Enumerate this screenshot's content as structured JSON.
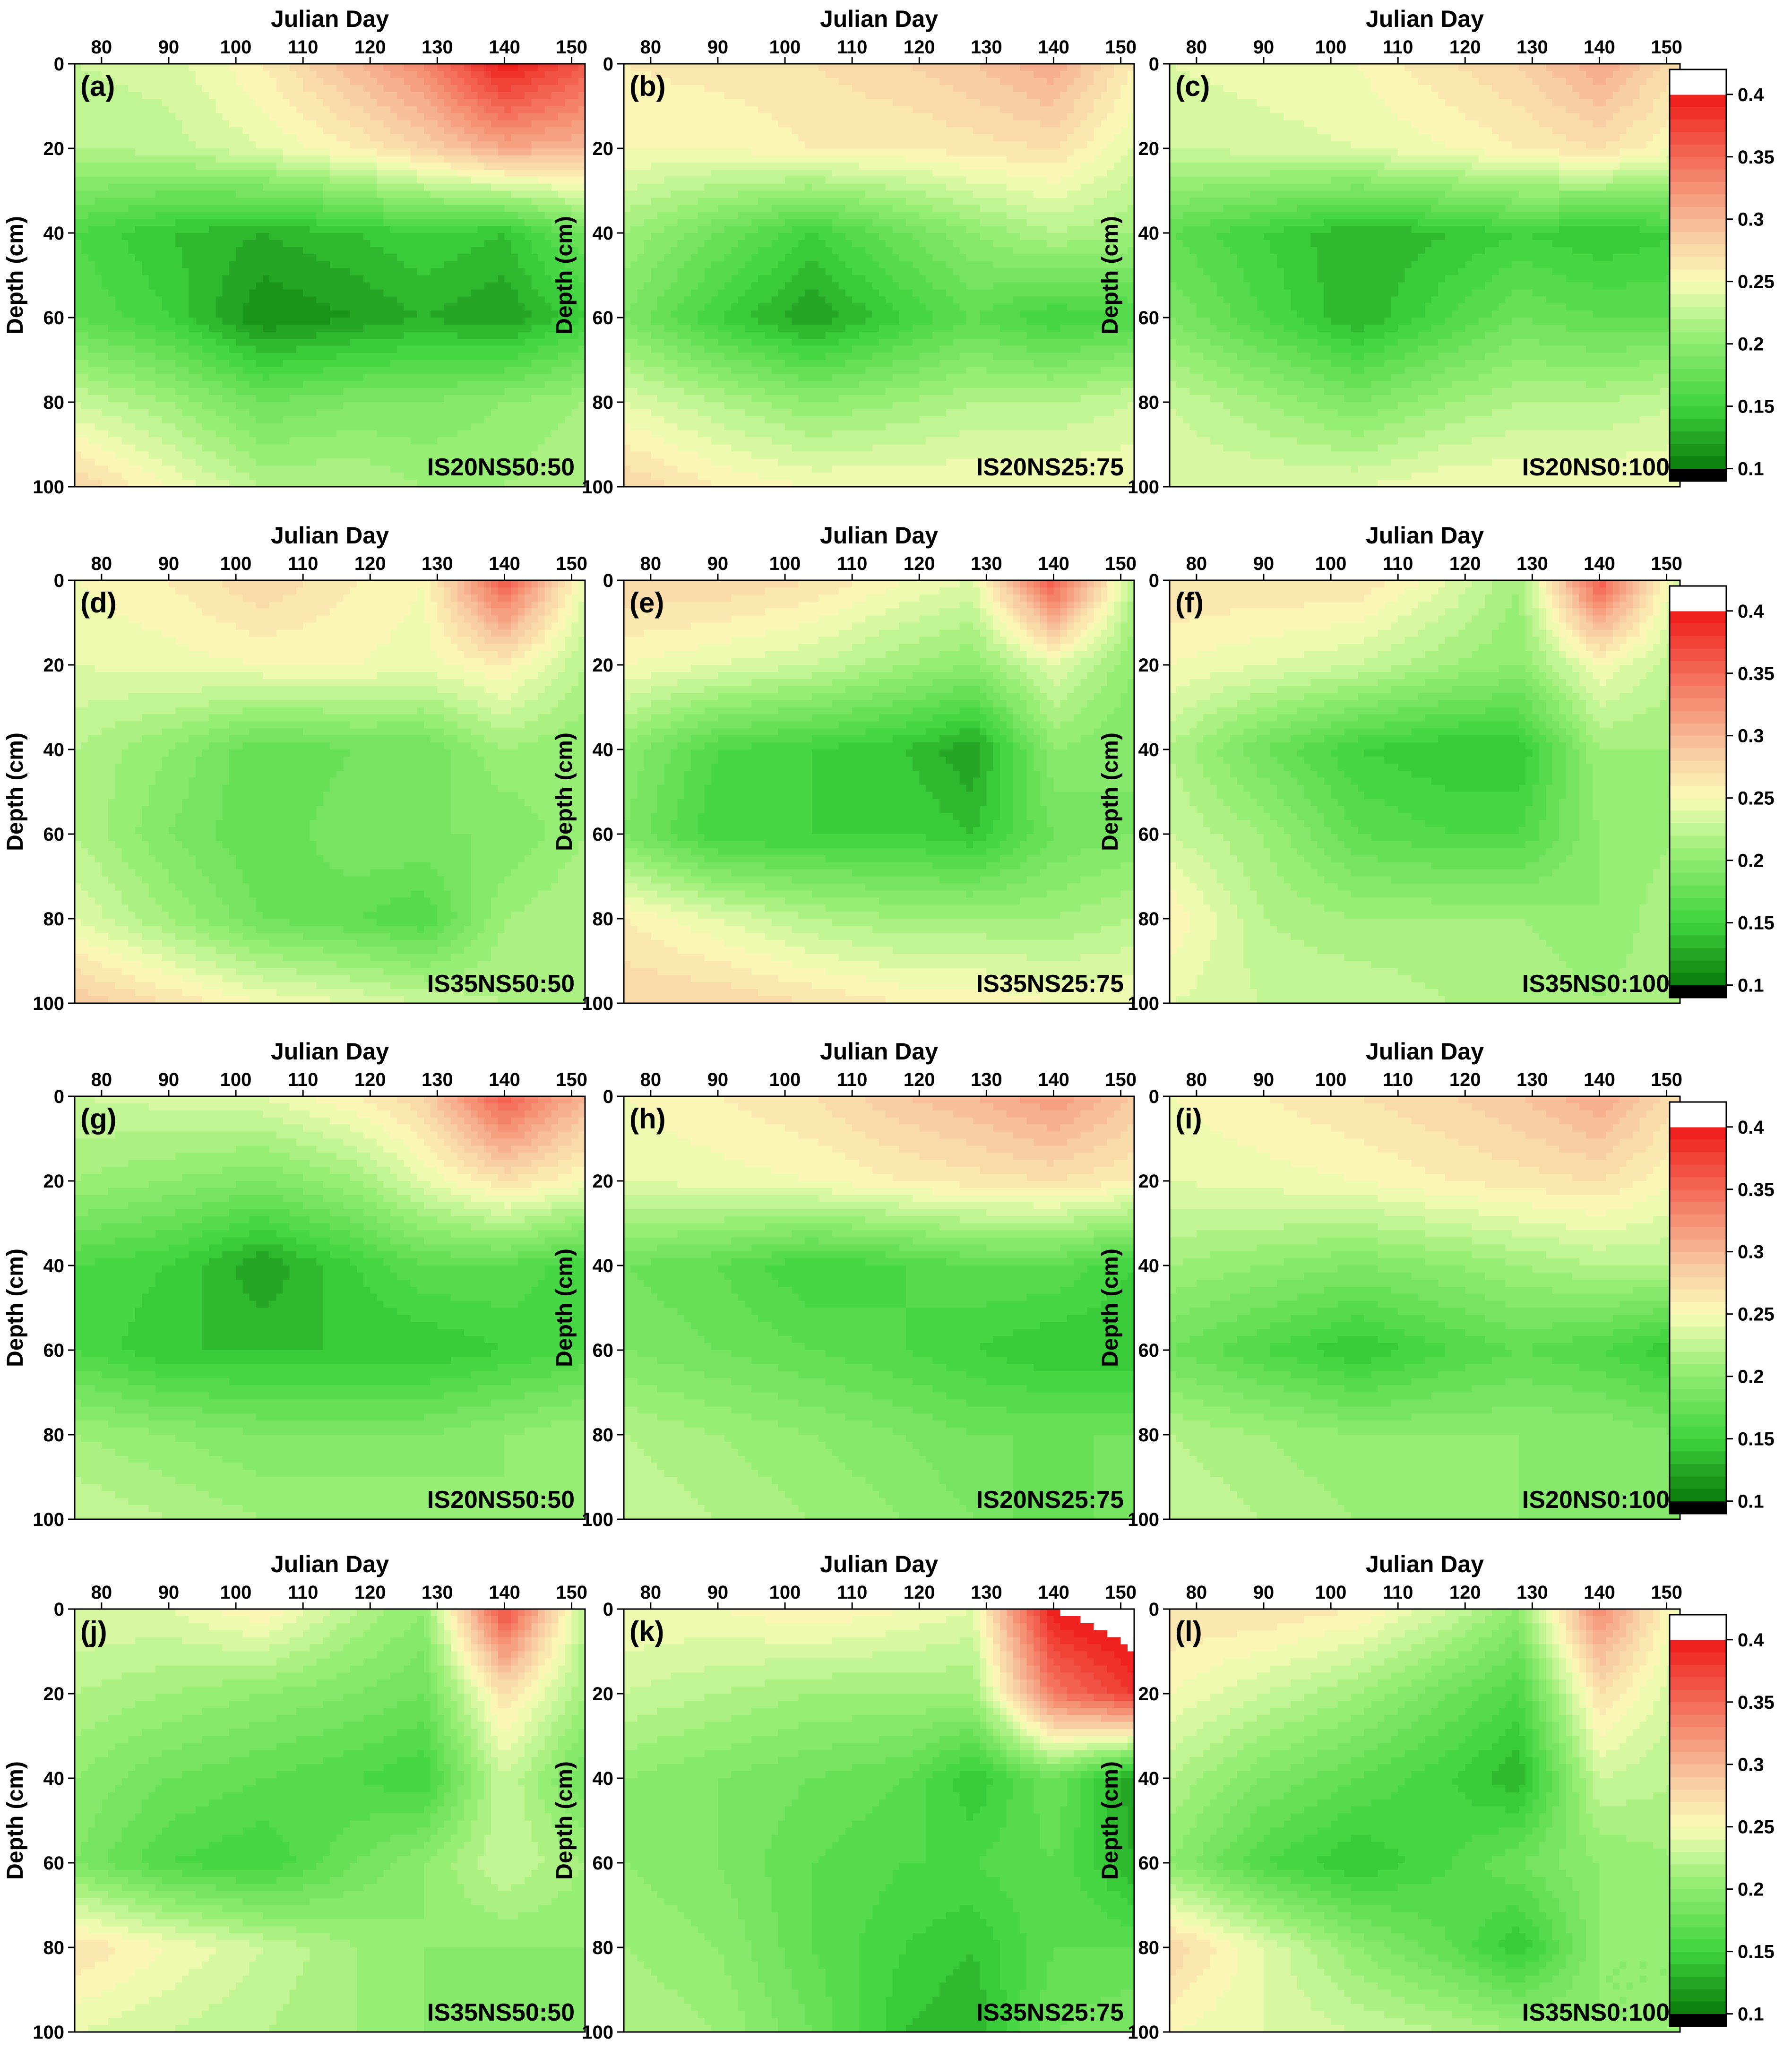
{
  "x_axis_label": "Julian Day",
  "y_axis_label": "Depth (cm)",
  "colors": {
    "low": "#000000",
    "dark_green": "#0a7a0a",
    "green": "#3fd43f",
    "light_green": "#9ef07a",
    "pale": "#fbfbb9",
    "peach": "#f8c8a0",
    "red": "#ef1a1a",
    "high": "#ffffff"
  },
  "chart_data": [
    {
      "type": "heatmap",
      "panel": "(a)",
      "label": "IS20NS50:50",
      "xlabel": "Julian Day",
      "ylabel": "Depth (cm)",
      "x": [
        76,
        90,
        104,
        118,
        128,
        140,
        152
      ],
      "y": [
        0,
        20,
        40,
        60,
        80,
        100
      ],
      "x_ticks": [
        80,
        90,
        100,
        110,
        120,
        130,
        140,
        150
      ],
      "y_ticks": [
        0,
        20,
        40,
        60,
        80,
        100
      ],
      "xlim": [
        76,
        152
      ],
      "ylim": [
        0,
        100
      ],
      "z": [
        [
          0.23,
          0.235,
          0.26,
          0.3,
          0.33,
          0.4,
          0.36
        ],
        [
          0.22,
          0.225,
          0.24,
          0.26,
          0.28,
          0.31,
          0.3
        ],
        [
          0.16,
          0.14,
          0.13,
          0.14,
          0.15,
          0.14,
          0.18
        ],
        [
          0.17,
          0.15,
          0.11,
          0.12,
          0.13,
          0.12,
          0.15
        ],
        [
          0.23,
          0.21,
          0.18,
          0.19,
          0.19,
          0.2,
          0.21
        ],
        [
          0.28,
          0.25,
          0.22,
          0.22,
          0.21,
          0.21,
          0.22
        ]
      ]
    },
    {
      "type": "heatmap",
      "panel": "(b)",
      "label": "IS20NS25:75",
      "xlabel": "Julian Day",
      "ylabel": "Depth (cm)",
      "x": [
        76,
        90,
        104,
        118,
        128,
        140,
        152
      ],
      "y": [
        0,
        20,
        40,
        60,
        80,
        100
      ],
      "x_ticks": [
        80,
        90,
        100,
        110,
        120,
        130,
        140,
        150
      ],
      "y_ticks": [
        0,
        20,
        40,
        60,
        80,
        100
      ],
      "xlim": [
        76,
        152
      ],
      "ylim": [
        0,
        100
      ],
      "z": [
        [
          0.26,
          0.265,
          0.27,
          0.28,
          0.29,
          0.31,
          0.26
        ],
        [
          0.25,
          0.25,
          0.26,
          0.26,
          0.265,
          0.27,
          0.24
        ],
        [
          0.21,
          0.18,
          0.15,
          0.18,
          0.2,
          0.22,
          0.21
        ],
        [
          0.19,
          0.15,
          0.12,
          0.15,
          0.17,
          0.15,
          0.16
        ],
        [
          0.24,
          0.22,
          0.2,
          0.21,
          0.22,
          0.22,
          0.23
        ],
        [
          0.28,
          0.26,
          0.25,
          0.25,
          0.25,
          0.25,
          0.25
        ]
      ]
    },
    {
      "type": "heatmap",
      "panel": "(c)",
      "label": "IS20NS0:100",
      "xlabel": "Julian Day",
      "ylabel": "Depth (cm)",
      "x": [
        76,
        90,
        104,
        118,
        128,
        140,
        152
      ],
      "y": [
        0,
        20,
        40,
        60,
        80,
        100
      ],
      "x_ticks": [
        80,
        90,
        100,
        110,
        120,
        130,
        140,
        150
      ],
      "y_ticks": [
        0,
        20,
        40,
        60,
        80,
        100
      ],
      "xlim": [
        76,
        152
      ],
      "ylim": [
        0,
        100
      ],
      "z": [
        [
          0.24,
          0.245,
          0.25,
          0.27,
          0.28,
          0.31,
          0.27
        ],
        [
          0.23,
          0.235,
          0.24,
          0.25,
          0.26,
          0.27,
          0.25
        ],
        [
          0.17,
          0.15,
          0.13,
          0.14,
          0.15,
          0.14,
          0.15
        ],
        [
          0.19,
          0.16,
          0.13,
          0.16,
          0.18,
          0.17,
          0.17
        ],
        [
          0.23,
          0.21,
          0.19,
          0.21,
          0.22,
          0.22,
          0.23
        ],
        [
          0.24,
          0.24,
          0.24,
          0.25,
          0.25,
          0.25,
          0.25
        ]
      ]
    },
    {
      "type": "heatmap",
      "panel": "(d)",
      "label": "IS35NS50:50",
      "xlabel": "Julian Day",
      "ylabel": "Depth (cm)",
      "x": [
        76,
        90,
        104,
        118,
        128,
        140,
        152
      ],
      "y": [
        0,
        20,
        40,
        60,
        80,
        100
      ],
      "x_ticks": [
        80,
        90,
        100,
        110,
        120,
        130,
        140,
        150
      ],
      "y_ticks": [
        0,
        20,
        40,
        60,
        80,
        100
      ],
      "xlim": [
        76,
        152
      ],
      "ylim": [
        0,
        100
      ],
      "z": [
        [
          0.25,
          0.26,
          0.28,
          0.26,
          0.25,
          0.36,
          0.24
        ],
        [
          0.24,
          0.245,
          0.25,
          0.25,
          0.245,
          0.26,
          0.22
        ],
        [
          0.22,
          0.2,
          0.17,
          0.18,
          0.18,
          0.21,
          0.2
        ],
        [
          0.22,
          0.19,
          0.17,
          0.19,
          0.19,
          0.19,
          0.21
        ],
        [
          0.24,
          0.21,
          0.18,
          0.17,
          0.16,
          0.21,
          0.22
        ],
        [
          0.29,
          0.27,
          0.25,
          0.24,
          0.23,
          0.22,
          0.22
        ]
      ]
    },
    {
      "type": "heatmap",
      "panel": "(e)",
      "label": "IS35NS25:75",
      "xlabel": "Julian Day",
      "ylabel": "Depth (cm)",
      "x": [
        76,
        90,
        104,
        118,
        128,
        140,
        152
      ],
      "y": [
        0,
        20,
        40,
        60,
        80,
        100
      ],
      "x_ticks": [
        80,
        90,
        100,
        110,
        120,
        130,
        140,
        150
      ],
      "y_ticks": [
        0,
        20,
        40,
        60,
        80,
        100
      ],
      "xlim": [
        76,
        152
      ],
      "ylim": [
        0,
        100
      ],
      "z": [
        [
          0.28,
          0.28,
          0.27,
          0.25,
          0.24,
          0.36,
          0.22
        ],
        [
          0.25,
          0.24,
          0.23,
          0.21,
          0.2,
          0.24,
          0.2
        ],
        [
          0.2,
          0.16,
          0.15,
          0.14,
          0.12,
          0.2,
          0.19
        ],
        [
          0.19,
          0.15,
          0.15,
          0.15,
          0.14,
          0.18,
          0.19
        ],
        [
          0.26,
          0.24,
          0.22,
          0.21,
          0.21,
          0.21,
          0.22
        ],
        [
          0.28,
          0.28,
          0.27,
          0.26,
          0.26,
          0.25,
          0.25
        ]
      ]
    },
    {
      "type": "heatmap",
      "panel": "(f)",
      "label": "IS35NS0:100",
      "xlabel": "Julian Day",
      "ylabel": "Depth (cm)",
      "x": [
        76,
        90,
        104,
        118,
        128,
        140,
        152
      ],
      "y": [
        0,
        20,
        40,
        60,
        80,
        100
      ],
      "x_ticks": [
        80,
        90,
        100,
        110,
        120,
        130,
        140,
        150
      ],
      "y_ticks": [
        0,
        20,
        40,
        60,
        80,
        100
      ],
      "xlim": [
        76,
        152
      ],
      "ylim": [
        0,
        100
      ],
      "z": [
        [
          0.27,
          0.27,
          0.27,
          0.24,
          0.21,
          0.36,
          0.23
        ],
        [
          0.25,
          0.24,
          0.23,
          0.21,
          0.2,
          0.25,
          0.22
        ],
        [
          0.22,
          0.18,
          0.15,
          0.14,
          0.14,
          0.21,
          0.21
        ],
        [
          0.23,
          0.21,
          0.17,
          0.16,
          0.16,
          0.2,
          0.21
        ],
        [
          0.26,
          0.22,
          0.21,
          0.21,
          0.21,
          0.2,
          0.22
        ],
        [
          0.24,
          0.23,
          0.23,
          0.22,
          0.22,
          0.21,
          0.22
        ]
      ]
    },
    {
      "type": "heatmap",
      "panel": "(g)",
      "label": "IS20NS50:50",
      "xlabel": "Julian Day",
      "ylabel": "Depth (cm)",
      "x": [
        76,
        90,
        104,
        118,
        128,
        140,
        152
      ],
      "y": [
        0,
        20,
        40,
        60,
        80,
        100
      ],
      "x_ticks": [
        80,
        90,
        100,
        110,
        120,
        130,
        140,
        150
      ],
      "y_ticks": [
        0,
        20,
        40,
        60,
        80,
        100
      ],
      "xlim": [
        76,
        152
      ],
      "ylim": [
        0,
        100
      ],
      "z": [
        [
          0.23,
          0.235,
          0.24,
          0.26,
          0.28,
          0.36,
          0.3
        ],
        [
          0.21,
          0.2,
          0.19,
          0.21,
          0.24,
          0.27,
          0.25
        ],
        [
          0.16,
          0.15,
          0.12,
          0.15,
          0.17,
          0.17,
          0.15
        ],
        [
          0.16,
          0.14,
          0.14,
          0.14,
          0.14,
          0.15,
          0.16
        ],
        [
          0.21,
          0.2,
          0.19,
          0.19,
          0.19,
          0.2,
          0.21
        ],
        [
          0.23,
          0.22,
          0.21,
          0.21,
          0.21,
          0.2,
          0.21
        ]
      ]
    },
    {
      "type": "heatmap",
      "panel": "(h)",
      "label": "IS20NS25:75",
      "xlabel": "Julian Day",
      "ylabel": "Depth (cm)",
      "x": [
        76,
        90,
        104,
        118,
        128,
        140,
        152
      ],
      "y": [
        0,
        20,
        40,
        60,
        80,
        100
      ],
      "x_ticks": [
        80,
        90,
        100,
        110,
        120,
        130,
        140,
        150
      ],
      "y_ticks": [
        0,
        20,
        40,
        60,
        80,
        100
      ],
      "xlim": [
        76,
        152
      ],
      "ylim": [
        0,
        100
      ],
      "z": [
        [
          0.25,
          0.26,
          0.27,
          0.29,
          0.3,
          0.32,
          0.29
        ],
        [
          0.24,
          0.245,
          0.25,
          0.26,
          0.265,
          0.27,
          0.26
        ],
        [
          0.18,
          0.17,
          0.15,
          0.16,
          0.17,
          0.17,
          0.15
        ],
        [
          0.19,
          0.18,
          0.17,
          0.16,
          0.15,
          0.14,
          0.14
        ],
        [
          0.22,
          0.21,
          0.2,
          0.19,
          0.18,
          0.18,
          0.18
        ],
        [
          0.23,
          0.22,
          0.21,
          0.2,
          0.19,
          0.17,
          0.19
        ]
      ]
    },
    {
      "type": "heatmap",
      "panel": "(i)",
      "label": "IS20NS0:100",
      "xlabel": "Julian Day",
      "ylabel": "Depth (cm)",
      "x": [
        76,
        90,
        104,
        118,
        128,
        140,
        152
      ],
      "y": [
        0,
        20,
        40,
        60,
        80,
        100
      ],
      "x_ticks": [
        80,
        90,
        100,
        110,
        120,
        130,
        140,
        150
      ],
      "y_ticks": [
        0,
        20,
        40,
        60,
        80,
        100
      ],
      "xlim": [
        76,
        152
      ],
      "ylim": [
        0,
        100
      ],
      "z": [
        [
          0.25,
          0.26,
          0.27,
          0.28,
          0.29,
          0.31,
          0.27
        ],
        [
          0.24,
          0.245,
          0.25,
          0.26,
          0.265,
          0.27,
          0.25
        ],
        [
          0.21,
          0.2,
          0.19,
          0.2,
          0.21,
          0.22,
          0.22
        ],
        [
          0.18,
          0.16,
          0.14,
          0.16,
          0.17,
          0.16,
          0.14
        ],
        [
          0.22,
          0.21,
          0.2,
          0.2,
          0.2,
          0.2,
          0.19
        ],
        [
          0.23,
          0.22,
          0.21,
          0.21,
          0.2,
          0.19,
          0.19
        ]
      ]
    },
    {
      "type": "heatmap",
      "panel": "(j)",
      "label": "IS35NS50:50",
      "xlabel": "Julian Day",
      "ylabel": "Depth (cm)",
      "x": [
        76,
        90,
        104,
        118,
        128,
        140,
        152
      ],
      "y": [
        0,
        20,
        40,
        60,
        80,
        100
      ],
      "x_ticks": [
        80,
        90,
        100,
        110,
        120,
        130,
        140,
        150
      ],
      "y_ticks": [
        0,
        20,
        40,
        60,
        80,
        100
      ],
      "xlim": [
        76,
        152
      ],
      "ylim": [
        0,
        100
      ],
      "z": [
        [
          0.24,
          0.24,
          0.26,
          0.22,
          0.2,
          0.37,
          0.22
        ],
        [
          0.22,
          0.21,
          0.2,
          0.19,
          0.18,
          0.27,
          0.21
        ],
        [
          0.2,
          0.18,
          0.17,
          0.16,
          0.15,
          0.23,
          0.18
        ],
        [
          0.19,
          0.16,
          0.15,
          0.18,
          0.2,
          0.23,
          0.21
        ],
        [
          0.27,
          0.25,
          0.23,
          0.21,
          0.2,
          0.2,
          0.2
        ],
        [
          0.24,
          0.23,
          0.22,
          0.21,
          0.2,
          0.19,
          0.19
        ]
      ]
    },
    {
      "type": "heatmap",
      "panel": "(k)",
      "label": "IS35NS25:75",
      "xlabel": "Julian Day",
      "ylabel": "Depth (cm)",
      "x": [
        76,
        90,
        104,
        118,
        128,
        140,
        152
      ],
      "y": [
        0,
        20,
        40,
        60,
        80,
        100
      ],
      "x_ticks": [
        80,
        90,
        100,
        110,
        120,
        130,
        140,
        150
      ],
      "y_ticks": [
        0,
        20,
        40,
        60,
        80,
        100
      ],
      "xlim": [
        76,
        152
      ],
      "ylim": [
        0,
        100
      ],
      "z": [
        [
          0.25,
          0.25,
          0.26,
          0.25,
          0.24,
          0.4,
          0.42
        ],
        [
          0.23,
          0.22,
          0.21,
          0.21,
          0.21,
          0.34,
          0.38
        ],
        [
          0.2,
          0.19,
          0.18,
          0.17,
          0.14,
          0.18,
          0.12
        ],
        [
          0.2,
          0.19,
          0.17,
          0.16,
          0.16,
          0.17,
          0.13
        ],
        [
          0.21,
          0.2,
          0.17,
          0.15,
          0.14,
          0.17,
          0.17
        ],
        [
          0.22,
          0.21,
          0.18,
          0.14,
          0.13,
          0.18,
          0.19
        ]
      ]
    },
    {
      "type": "heatmap",
      "panel": "(l)",
      "label": "IS35NS0:100",
      "xlabel": "Julian Day",
      "ylabel": "Depth (cm)",
      "x": [
        76,
        90,
        104,
        118,
        128,
        140,
        152
      ],
      "y": [
        0,
        20,
        40,
        60,
        80,
        100
      ],
      "x_ticks": [
        80,
        90,
        100,
        110,
        120,
        130,
        140,
        150
      ],
      "y_ticks": [
        0,
        20,
        40,
        60,
        80,
        100
      ],
      "xlim": [
        76,
        152
      ],
      "ylim": [
        0,
        100
      ],
      "z": [
        [
          0.27,
          0.27,
          0.26,
          0.23,
          0.2,
          0.33,
          0.24
        ],
        [
          0.25,
          0.23,
          0.21,
          0.18,
          0.16,
          0.27,
          0.23
        ],
        [
          0.22,
          0.19,
          0.17,
          0.15,
          0.13,
          0.23,
          0.22
        ],
        [
          0.2,
          0.16,
          0.14,
          0.16,
          0.18,
          0.2,
          0.21
        ],
        [
          0.28,
          0.24,
          0.2,
          0.17,
          0.14,
          0.2,
          0.2
        ],
        [
          0.25,
          0.24,
          0.23,
          0.22,
          0.21,
          0.2,
          0.2
        ]
      ]
    }
  ],
  "colorbar": {
    "ticks": [
      0.1,
      0.15,
      0.2,
      0.25,
      0.3,
      0.35,
      0.4
    ],
    "tick_labels": [
      "0.1",
      "0.15",
      "0.2",
      "0.25",
      "0.3",
      "0.35",
      "0.4"
    ],
    "range": [
      0.09,
      0.42
    ]
  }
}
